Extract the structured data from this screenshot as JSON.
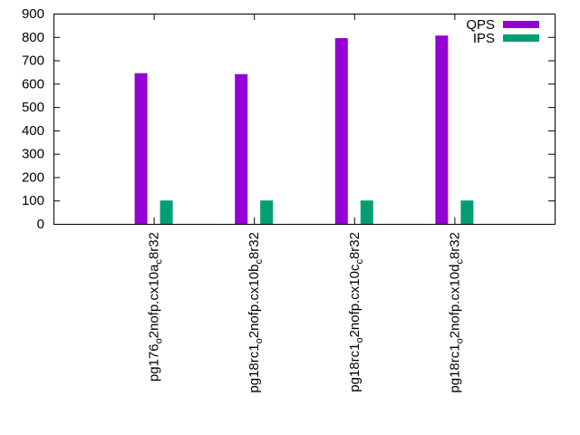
{
  "chart_data": {
    "type": "bar",
    "title": "",
    "xlabel": "",
    "ylabel": "",
    "ylim": [
      0,
      900
    ],
    "yticks": [
      0,
      100,
      200,
      300,
      400,
      500,
      600,
      700,
      800,
      900
    ],
    "grid": false,
    "legend_position": "top-right",
    "categories": [
      {
        "parts": [
          "pg176",
          "o",
          "2nofp.cx10a",
          "c",
          "8r32"
        ]
      },
      {
        "parts": [
          "pg18rc1",
          "o",
          "2nofp.cx10b",
          "c",
          "8r32"
        ]
      },
      {
        "parts": [
          "pg18rc1",
          "o",
          "2nofp.cx10c",
          "c",
          "8r32"
        ]
      },
      {
        "parts": [
          "pg18rc1",
          "o",
          "2nofp.cx10d",
          "c",
          "8r32"
        ]
      }
    ],
    "series": [
      {
        "name": "QPS",
        "color": "#9400d3",
        "values": [
          645,
          641,
          795,
          806
        ]
      },
      {
        "name": "IPS",
        "color": "#009e73",
        "values": [
          100,
          100,
          100,
          100
        ]
      }
    ]
  }
}
